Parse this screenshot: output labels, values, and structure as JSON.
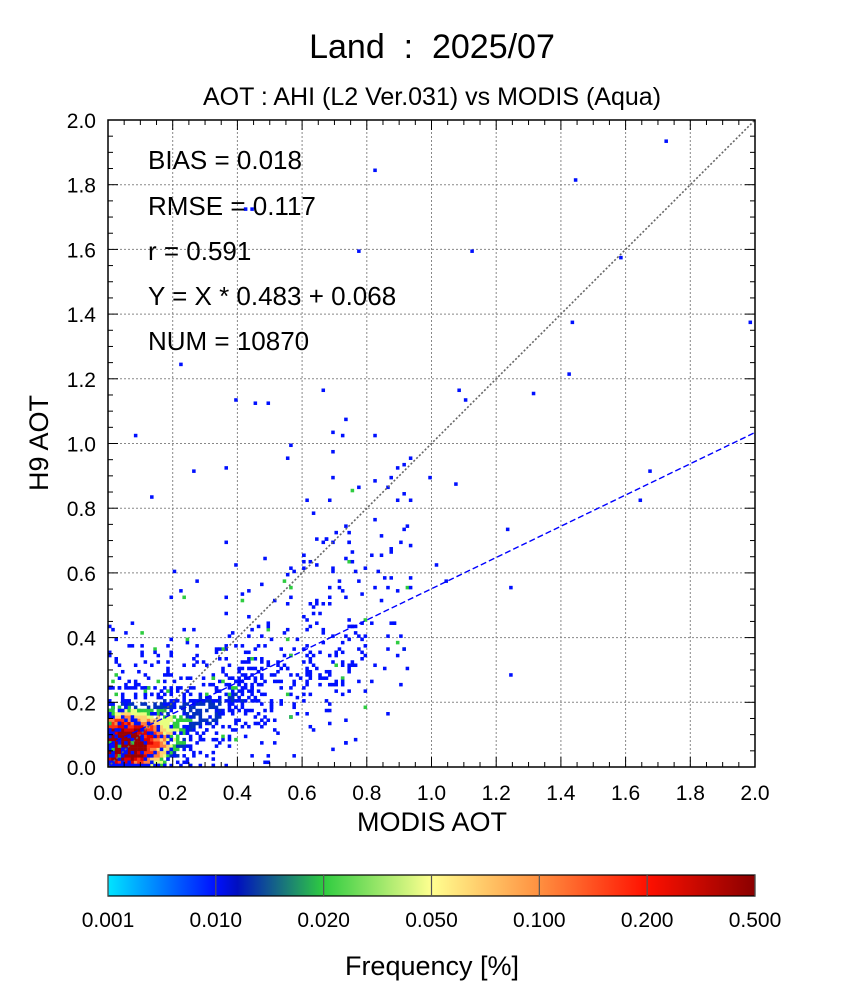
{
  "chart_data": {
    "type": "heatmap",
    "title": "Land  :  2025/07",
    "subtitle": "AOT : AHI (L2 Ver.031) vs MODIS (Aqua)",
    "xlabel": "MODIS AOT",
    "ylabel": "H9 AOT",
    "xlim": [
      0.0,
      2.0
    ],
    "ylim": [
      0.0,
      2.0
    ],
    "xticks": [
      "0.0",
      "0.2",
      "0.4",
      "0.6",
      "0.8",
      "1.0",
      "1.2",
      "1.4",
      "1.6",
      "1.8",
      "2.0"
    ],
    "yticks": [
      "0.0",
      "0.2",
      "0.4",
      "0.6",
      "0.8",
      "1.0",
      "1.2",
      "1.4",
      "1.6",
      "1.8",
      "2.0"
    ],
    "grid": true,
    "stats": [
      "BIAS = 0.018",
      "RMSE = 0.117",
      "r = 0.591",
      "Y = X * 0.483 + 0.068",
      "NUM = 10870"
    ],
    "reference_line": {
      "slope": 1.0,
      "intercept": 0.0,
      "color": "#666666"
    },
    "regression_line": {
      "slope": 0.483,
      "intercept": 0.068,
      "color": "#0000ff"
    },
    "colorbar": {
      "label": "Frequency [%]",
      "tick_labels": [
        "0.001",
        "0.010",
        "0.020",
        "0.050",
        "0.100",
        "0.200",
        "0.500"
      ],
      "colors": [
        "#00e5ff",
        "#0010ff",
        "#00108a",
        "#2ecc40",
        "#ffff90",
        "#ff2000",
        "#8a0000"
      ]
    },
    "outlier_points": [
      [
        1.72,
        1.93
      ],
      [
        1.44,
        1.81
      ],
      [
        0.82,
        1.84
      ],
      [
        0.42,
        1.72
      ],
      [
        0.44,
        1.72
      ],
      [
        0.77,
        1.59
      ],
      [
        1.12,
        1.59
      ],
      [
        1.58,
        1.57
      ],
      [
        1.43,
        1.37
      ],
      [
        1.98,
        1.37
      ],
      [
        0.22,
        1.24
      ],
      [
        1.42,
        1.21
      ],
      [
        0.66,
        1.17
      ],
      [
        1.08,
        1.17
      ],
      [
        1.31,
        1.16
      ],
      [
        1.1,
        1.14
      ],
      [
        0.39,
        1.14
      ],
      [
        0.45,
        1.12
      ],
      [
        0.49,
        1.12
      ],
      [
        0.69,
        1.03
      ],
      [
        0.73,
        1.07
      ],
      [
        0.72,
        1.02
      ],
      [
        0.82,
        1.02
      ],
      [
        0.08,
        1.02
      ],
      [
        0.56,
        0.99
      ],
      [
        0.55,
        0.95
      ],
      [
        0.89,
        0.92
      ],
      [
        0.91,
        0.94
      ],
      [
        0.94,
        0.95
      ],
      [
        0.87,
        0.89
      ],
      [
        1.67,
        0.91
      ],
      [
        0.26,
        0.91
      ],
      [
        0.36,
        0.92
      ],
      [
        0.86,
        0.86
      ],
      [
        1.07,
        0.87
      ],
      [
        0.99,
        0.89
      ],
      [
        0.93,
        0.82
      ],
      [
        0.89,
        0.82
      ],
      [
        1.64,
        0.82
      ],
      [
        0.7,
        0.72
      ],
      [
        1.23,
        0.73
      ],
      [
        1.01,
        0.62
      ],
      [
        1.04,
        0.58
      ],
      [
        1.24,
        0.29
      ],
      [
        1.24,
        0.55
      ],
      [
        0.93,
        0.55
      ],
      [
        0.6,
        0.65
      ],
      [
        0.63,
        0.78
      ],
      [
        0.13,
        0.83
      ],
      [
        0.2,
        0.6
      ]
    ]
  }
}
